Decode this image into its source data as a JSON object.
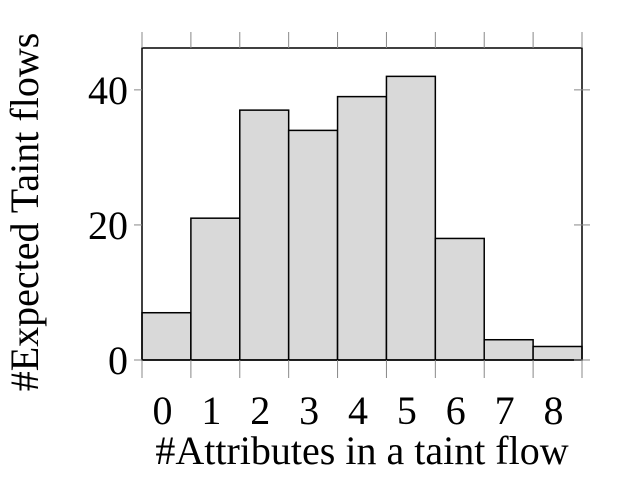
{
  "chart_data": {
    "type": "bar",
    "x_label": "#Attributes in a taint flow",
    "y_label": "#Expected Taint flows",
    "categories": [
      "0",
      "1",
      "2",
      "3",
      "4",
      "5",
      "6",
      "7",
      "8"
    ],
    "values": [
      7,
      21,
      37,
      34,
      39,
      42,
      18,
      3,
      2
    ],
    "color": "#d9d9d9",
    "ylim": [
      0,
      46.2
    ],
    "yticks": [
      0,
      20,
      40
    ]
  }
}
